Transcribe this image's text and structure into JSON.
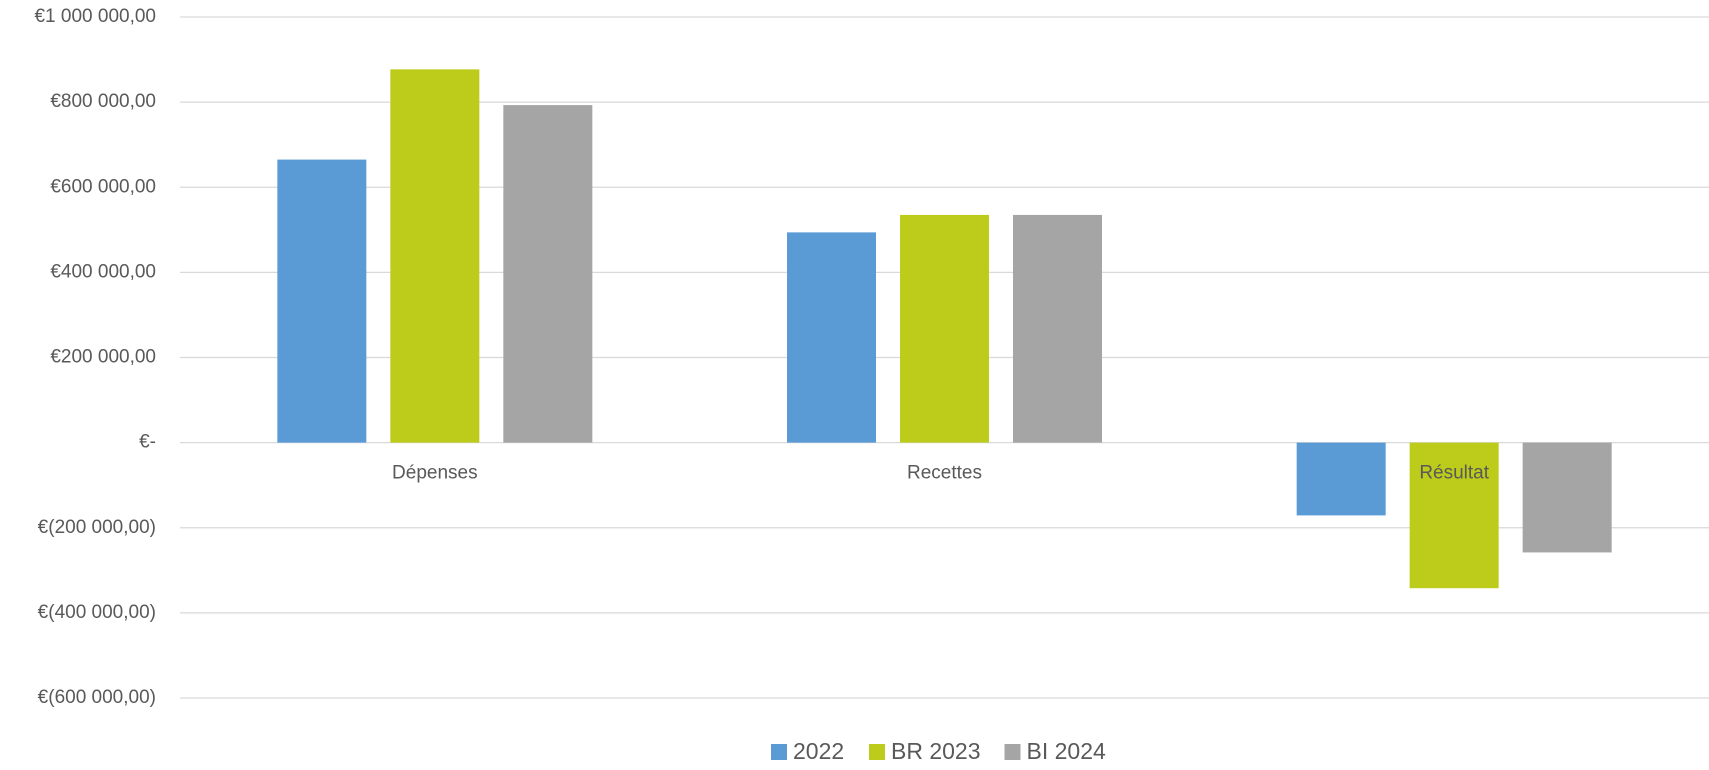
{
  "chart_data": {
    "type": "bar",
    "categories": [
      "Dépenses",
      "Recettes",
      "Résultat"
    ],
    "series": [
      {
        "name": "2022",
        "color": "#5b9bd5",
        "values": [
          665000,
          494000,
          -171000
        ]
      },
      {
        "name": "BR 2023",
        "color": "#bdcc1b",
        "values": [
          877000,
          535000,
          -342000
        ]
      },
      {
        "name": "BI 2024",
        "color": "#a5a5a5",
        "values": [
          793000,
          535000,
          -258000
        ]
      }
    ],
    "ylim": [
      -600000,
      1000000
    ],
    "yticks": [
      {
        "value": -600000,
        "label": "€(600 000,00)"
      },
      {
        "value": -400000,
        "label": "€(400 000,00)"
      },
      {
        "value": -200000,
        "label": "€(200 000,00)"
      },
      {
        "value": 0,
        "label": "€-"
      },
      {
        "value": 200000,
        "label": "€200 000,00"
      },
      {
        "value": 400000,
        "label": "€400 000,00"
      },
      {
        "value": 600000,
        "label": "€600 000,00"
      },
      {
        "value": 800000,
        "label": "€800 000,00"
      },
      {
        "value": 1000000,
        "label": "€1 000 000,00"
      }
    ],
    "grid": true,
    "legend": "bottom"
  }
}
